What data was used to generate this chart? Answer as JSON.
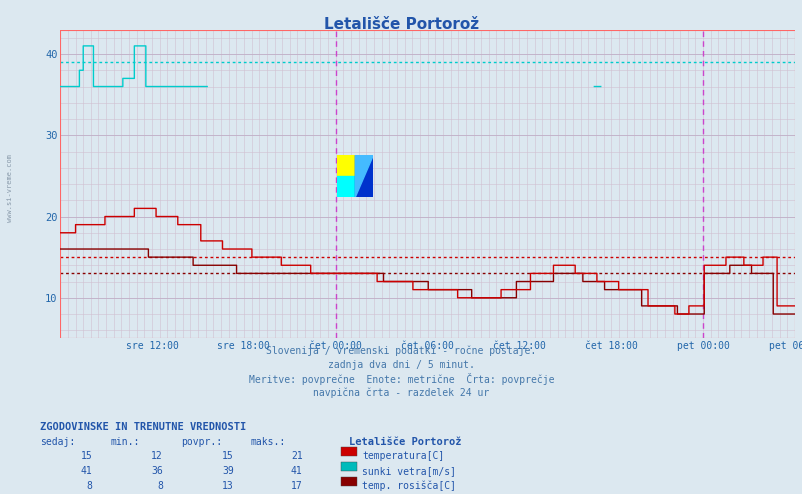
{
  "title": "Letališče Portorož",
  "fig_bg_color": "#dce8f0",
  "plot_bg_color": "#dce8f0",
  "ylim": [
    5,
    43
  ],
  "yticks": [
    10,
    20,
    30,
    40
  ],
  "xlabel_ticks": [
    "sre 12:00",
    "sre 18:00",
    "čet 00:00",
    "čet 06:00",
    "čet 12:00",
    "čet 18:00",
    "pet 00:00",
    "pet 06:00"
  ],
  "grid_color_major": "#c8b8c8",
  "grid_color_minor": "#d0c8d8",
  "title_color": "#2255aa",
  "tick_color": "#2266aa",
  "footer_lines": [
    "Slovenija / vremenski podatki - ročne postaje.",
    "zadnja dva dni / 5 minut.",
    "Meritve: povprečne  Enote: metrične  Črta: povprečje",
    "navpična črta - razdelek 24 ur"
  ],
  "legend_title": "ZGODOVINSKE IN TRENUTNE VREDNOSTI",
  "legend_headers": [
    "sedaj:",
    "min.:",
    "povpr.:",
    "maks.:"
  ],
  "legend_rows": [
    {
      "sedaj": 15,
      "min": 12,
      "povpr": 15,
      "maks": 21,
      "color": "#cc0000",
      "label": "temperatura[C]"
    },
    {
      "sedaj": 41,
      "min": 36,
      "povpr": 39,
      "maks": 41,
      "color": "#00bbbb",
      "label": "sunki vetra[m/s]"
    },
    {
      "sedaj": 8,
      "min": 8,
      "povpr": 13,
      "maks": 17,
      "color": "#880000",
      "label": "temp. rosišča[C]"
    }
  ],
  "station_label": "Letališče Portorož",
  "hline_temp_avg": 15,
  "hline_dew_avg": 13,
  "hline_wind_avg": 39,
  "vline_positions": [
    0.375,
    0.875
  ],
  "border_color": "#ff6666",
  "wind_color": "#00cccc",
  "temp_color": "#cc0000",
  "dew_color": "#880000",
  "vline_color": "#cc44cc",
  "n_points": 576
}
